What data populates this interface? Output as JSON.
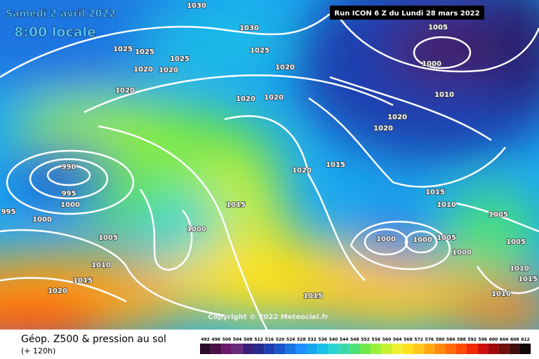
{
  "header": {
    "date": "Samedi 2 avril 2022",
    "time": "8:00 locale",
    "run": "Run ICON 6 Z du Lundi 28 mars 2022"
  },
  "isobars": {
    "labels": [
      1030,
      1030,
      1025,
      1025,
      1025,
      1025,
      1020,
      1020,
      1020,
      1020,
      1020,
      1020,
      1020,
      1020,
      1020,
      1015,
      1015,
      1015,
      1010,
      1010,
      1005,
      1000,
      990,
      995,
      1000,
      995,
      1000,
      1005,
      1000,
      1010,
      1015,
      1020,
      1000,
      1000,
      1005,
      1000,
      1005,
      1005,
      1010,
      1015,
      1010,
      1015
    ]
  },
  "copyright": "Copyright © 2022 Meteociel.fr",
  "footer": {
    "title": "Géop. Z500 & pression au sol",
    "subtitle": "(+ 120h)"
  },
  "scale": {
    "values": [
      492,
      496,
      500,
      504,
      508,
      512,
      516,
      520,
      524,
      528,
      532,
      536,
      540,
      544,
      548,
      552,
      556,
      560,
      564,
      568,
      572,
      576,
      580,
      584,
      588,
      592,
      596,
      600,
      604,
      608,
      612
    ],
    "colors": [
      "#2a0a2a",
      "#4a0f47",
      "#6b1a6b",
      "#6a2a7a",
      "#3a1f7a",
      "#2a2a8c",
      "#1f3fb0",
      "#1a56cc",
      "#1a75e0",
      "#1e90ff",
      "#19a8f0",
      "#1ac0e6",
      "#2ad4d0",
      "#3ad8a8",
      "#4ee07a",
      "#6ee84a",
      "#9af03a",
      "#c8f032",
      "#f0f032",
      "#ffe01e",
      "#ffc81a",
      "#ffaa14",
      "#ff8a10",
      "#ff6a0c",
      "#ff4a08",
      "#f02a06",
      "#d01010",
      "#a00a0a",
      "#701010",
      "#401010",
      "#100808"
    ]
  }
}
